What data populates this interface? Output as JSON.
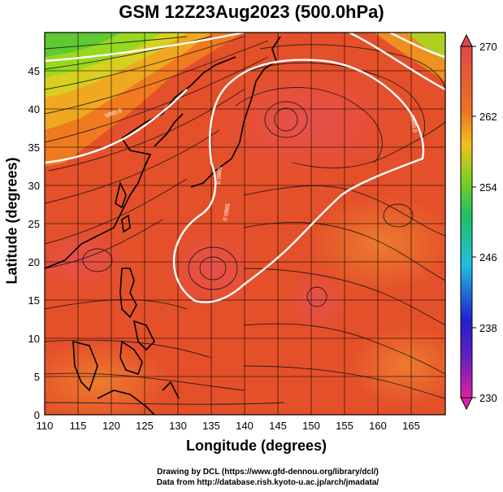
{
  "title": "GSM 12Z23Aug2023 (500.0hPa)",
  "x_axis": {
    "label": "Longitude (degrees)",
    "min": 110,
    "max": 170,
    "ticks": [
      110,
      115,
      120,
      125,
      130,
      135,
      140,
      145,
      150,
      155,
      160,
      165
    ]
  },
  "y_axis": {
    "label": "Latitude  (degrees)",
    "min": 0,
    "max": 50,
    "ticks": [
      0,
      5,
      10,
      15,
      20,
      25,
      30,
      35,
      40,
      45
    ]
  },
  "colorbar": {
    "min": 230,
    "max": 270,
    "ticks": [
      270,
      262,
      254,
      246,
      238,
      230
    ],
    "colors": [
      "#e020a0",
      "#2020d0",
      "#20c0e0",
      "#20c040",
      "#b0e020",
      "#f0a020",
      "#e04020",
      "#e04848"
    ]
  },
  "contour_label": "5880.0",
  "credits": {
    "line1": "Drawing by DCL (https://www.gfd-dennou.org/library/dcl/)",
    "line2": "Data from http://database.rish.kyoto-u.ac.jp/arch/jmadata/"
  }
}
